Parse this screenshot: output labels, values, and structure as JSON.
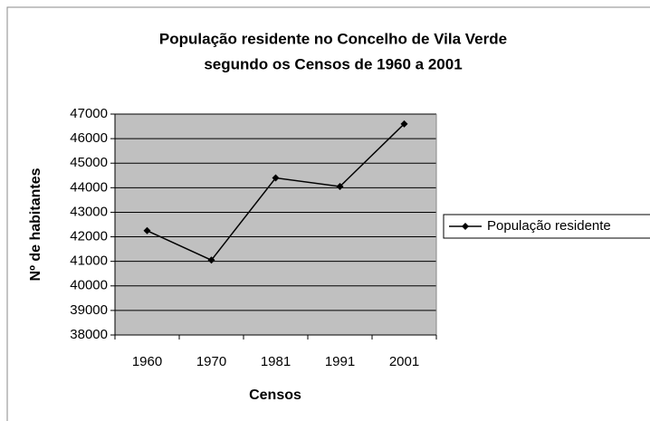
{
  "chart_data": {
    "type": "line",
    "title": [
      "População residente no Concelho de Vila Verde",
      "segundo os Censos de 1960 a 2001"
    ],
    "x_label": "Censos",
    "y_label": "Nº de habitantes",
    "categories": [
      "1960",
      "1970",
      "1981",
      "1991",
      "2001"
    ],
    "series": [
      {
        "name": "População residente",
        "color": "#000000",
        "values": [
          42250,
          41050,
          44400,
          44050,
          46600
        ]
      }
    ],
    "ylim": [
      38000,
      47000
    ],
    "yticks": [
      38000,
      39000,
      40000,
      41000,
      42000,
      43000,
      44000,
      45000,
      46000,
      47000
    ],
    "grid": true,
    "legend": "right",
    "plot_background": "#c0c0c0"
  }
}
